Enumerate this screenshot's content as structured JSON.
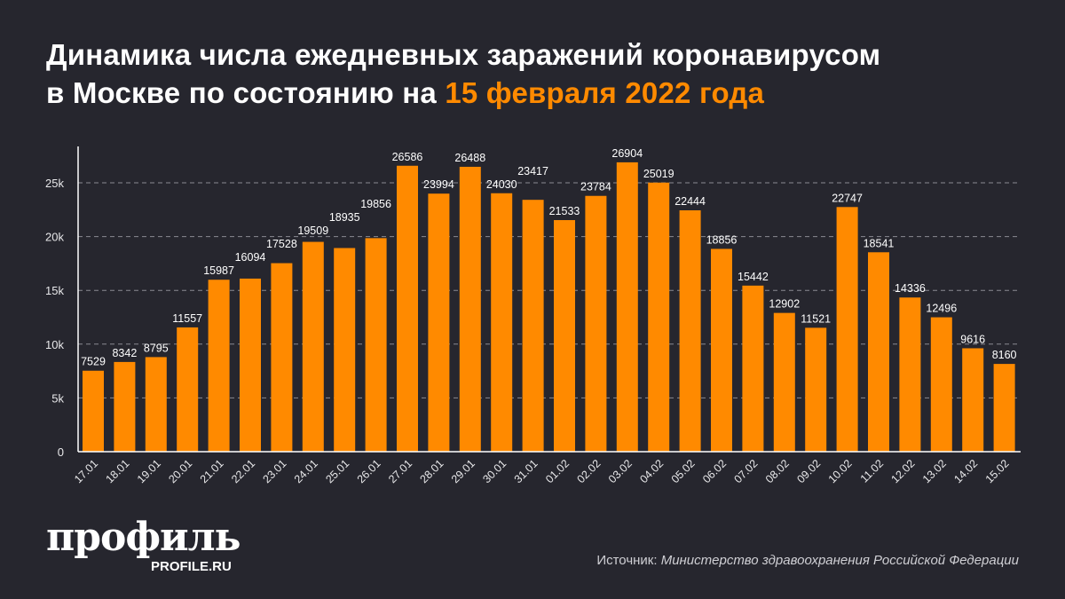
{
  "header": {
    "title_line1": "Динамика числа ежедневных заражений коронавирусом",
    "title_line2_prefix": "в Москве по состоянию на ",
    "title_line2_accent": "15 февраля 2022 года"
  },
  "colors": {
    "bar": "#ff8a00",
    "background": "#26262e",
    "accent": "#ff8a00"
  },
  "chart_data": {
    "type": "bar",
    "title": "Динамика числа ежедневных заражений коронавирусом в Москве по состоянию на 15 февраля 2022 года",
    "categories": [
      "17.01",
      "18.01",
      "19.01",
      "20.01",
      "21.01",
      "22.01",
      "23.01",
      "24.01",
      "25.01",
      "26.01",
      "27.01",
      "28.01",
      "29.01",
      "30.01",
      "31.01",
      "01.02",
      "02.02",
      "03.02",
      "04.02",
      "05.02",
      "06.02",
      "07.02",
      "08.02",
      "09.02",
      "10.02",
      "11.02",
      "12.02",
      "13.02",
      "14.02",
      "15.02"
    ],
    "values": [
      7529,
      8342,
      8795,
      11557,
      15987,
      16094,
      17528,
      19509,
      18935,
      19856,
      26586,
      23994,
      26488,
      24030,
      23417,
      21533,
      23784,
      26904,
      25019,
      22444,
      18856,
      15442,
      12902,
      11521,
      22747,
      18541,
      14336,
      12496,
      9616,
      8160
    ],
    "yticks": [
      0,
      5000,
      10000,
      15000,
      20000,
      25000
    ],
    "ytick_labels": [
      "0",
      "5k",
      "10k",
      "15k",
      "20k",
      "25k"
    ],
    "ylim": [
      0,
      28000
    ],
    "grid": true,
    "xlabel": "",
    "ylabel": ""
  },
  "footer": {
    "logo": "профиль",
    "logo_sub": "PROFILE.RU",
    "source_label": "Источник: ",
    "source_value": "Министерство здравоохранения Российской Федерации"
  }
}
